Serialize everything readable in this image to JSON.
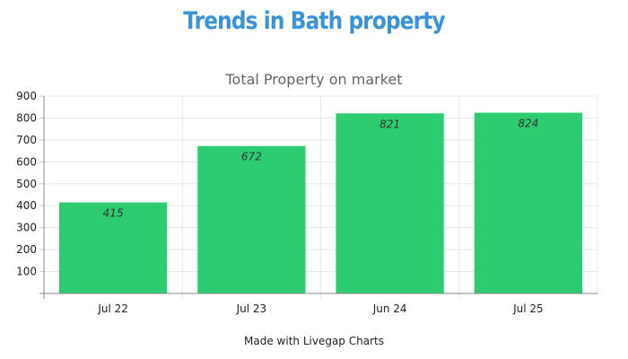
{
  "header": {
    "title": "Trends in Bath property"
  },
  "footer": {
    "note": "Made with Livegap Charts"
  },
  "colors": {
    "title": "#3a93d6",
    "bar": "#2ecc71",
    "grid": "#e8e8e8"
  },
  "chart_data": {
    "type": "bar",
    "title": "Total Property on market",
    "categories": [
      "Jul 22",
      "Jul 23",
      "Jun 24",
      "Jul 25"
    ],
    "values": [
      415,
      672,
      821,
      824
    ],
    "data_labels": [
      "415",
      "672",
      "821",
      "824"
    ],
    "yticks": [
      "100",
      "200",
      "300",
      "400",
      "500",
      "600",
      "700",
      "800",
      "900"
    ],
    "ylim": [
      0,
      900
    ],
    "grid": true,
    "legend": "none"
  }
}
